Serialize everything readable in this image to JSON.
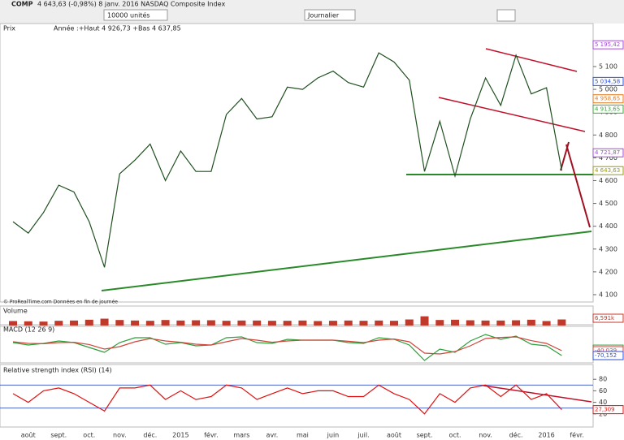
{
  "header": {
    "symbol": "COMP",
    "quote": "4 643,63 (-0,98%) 8 janv. 2016 NASDAQ Composite Index",
    "units": "10000 unités",
    "period": "Journalier"
  },
  "chart_data": [
    {
      "type": "line",
      "title": "Prix",
      "subtitle": "Année :+Haut 4 926,73 +Bas 4 637,85",
      "note": "© ProRealTime.com Données en fin de journée",
      "categories": [
        null,
        "août",
        null,
        "sept.",
        null,
        "oct.",
        null,
        "nov.",
        null,
        "déc.",
        null,
        "2015",
        null,
        "févr.",
        null,
        "mars",
        null,
        "avr.",
        null,
        "mai",
        null,
        "juin",
        null,
        "juil.",
        null,
        "août",
        null,
        "sept.",
        null,
        "oct.",
        null,
        "nov.",
        null,
        "déc.",
        null,
        "2016",
        null,
        "févr.",
        null
      ],
      "color": "#1f4f1f",
      "values": [
        4420,
        4370,
        4460,
        4580,
        4550,
        4420,
        4220,
        4630,
        4690,
        4760,
        4600,
        4730,
        4640,
        4640,
        4890,
        4960,
        4870,
        4880,
        5010,
        5000,
        5050,
        5080,
        5030,
        5010,
        5160,
        5120,
        5040,
        4640,
        4860,
        4620,
        4870,
        5050,
        4930,
        5150,
        4980,
        5007,
        4643.63,
        null,
        null
      ],
      "ylim": [
        4075,
        5285
      ],
      "yticks": [
        {
          "value": 4100,
          "label": "4 100"
        },
        {
          "value": 4200,
          "label": "4 200"
        },
        {
          "value": 4300,
          "label": "4 300"
        },
        {
          "value": 4400,
          "label": "4 400"
        },
        {
          "value": 4500,
          "label": "4 500"
        },
        {
          "value": 4600,
          "label": "4 600"
        },
        {
          "value": 4700,
          "label": "4 700"
        },
        {
          "value": 4800,
          "label": "4 800"
        },
        {
          "value": 4900,
          "label": "4 900"
        },
        {
          "value": 5000,
          "label": "5 000"
        },
        {
          "value": 5100,
          "label": "5 100"
        }
      ],
      "price_labels": [
        {
          "value": 5195.42,
          "label": "5 195,42",
          "color": "#a24bd0"
        },
        {
          "value": 5034.58,
          "label": "5 034,58",
          "color": "#2a4fd8"
        },
        {
          "value": 4958.65,
          "label": "4 958,65",
          "color": "#e07a20"
        },
        {
          "value": 4913.65,
          "label": "4 913,65",
          "color": "#3aa83a"
        },
        {
          "value": 4721.87,
          "label": "4 721,87",
          "color": "#a24bd0"
        },
        {
          "value": 4643.63,
          "label": "4 643,63",
          "color": "#9a9a10"
        }
      ]
    },
    {
      "type": "bar",
      "title": "Volume",
      "color": "#c0392b",
      "values": [
        1700,
        1600,
        1500,
        1800,
        1900,
        2200,
        2600,
        2100,
        1900,
        1800,
        2100,
        1900,
        2000,
        2000,
        1800,
        1900,
        1900,
        1800,
        1800,
        1900,
        1700,
        1800,
        1900,
        1800,
        1900,
        1800,
        2300,
        3500,
        2100,
        2200,
        2000,
        1900,
        1900,
        2000,
        2200,
        1700,
        2300,
        null,
        null
      ],
      "ylim": [
        0,
        4000
      ],
      "price_labels": [
        {
          "value": 6591,
          "label": "6,591k",
          "color": "#c0392b"
        }
      ]
    },
    {
      "type": "line",
      "title": "MACD (12 26 9)",
      "series": [
        {
          "color": "#2e9e3a",
          "values": [
            10,
            -5,
            5,
            20,
            10,
            -20,
            -50,
            10,
            40,
            40,
            0,
            10,
            -10,
            -5,
            40,
            45,
            10,
            5,
            30,
            25,
            25,
            25,
            10,
            5,
            40,
            30,
            -5,
            -100,
            -30,
            -50,
            20,
            60,
            30,
            50,
            0,
            -10,
            -70.152,
            null,
            null
          ]
        },
        {
          "color": "#d0453a",
          "values": [
            15,
            5,
            3,
            10,
            12,
            -2,
            -30,
            -15,
            15,
            35,
            20,
            12,
            0,
            -5,
            15,
            35,
            25,
            12,
            20,
            25,
            25,
            25,
            18,
            10,
            25,
            32,
            15,
            -55,
            -60,
            -45,
            -10,
            35,
            42,
            45,
            22,
            5,
            -40.039,
            null,
            null
          ]
        }
      ],
      "ylim": [
        -110,
        100
      ],
      "price_labels": [
        {
          "value": -30.333,
          "label": "-30,333",
          "color": "#2e9e3a"
        },
        {
          "value": -40.039,
          "label": "-40,039",
          "color": "#d0453a"
        },
        {
          "value": -70.152,
          "label": "-70,152",
          "color": "#2a4fd8"
        }
      ]
    },
    {
      "type": "line",
      "title": "Relative strength index (RSI) (14)",
      "color": "#e01010",
      "values": [
        55,
        40,
        60,
        65,
        55,
        40,
        25,
        65,
        65,
        70,
        45,
        60,
        45,
        50,
        70,
        65,
        45,
        55,
        65,
        55,
        60,
        60,
        50,
        50,
        70,
        55,
        45,
        20,
        55,
        40,
        65,
        70,
        50,
        70,
        45,
        55,
        27.309,
        null,
        null
      ],
      "ylim": [
        0,
        100
      ],
      "yticks": [
        80,
        60,
        40,
        20
      ],
      "hlines": [
        70,
        30
      ],
      "price_labels": [
        {
          "value": 27.309,
          "label": "27,309",
          "color": "#e01010"
        }
      ]
    }
  ]
}
